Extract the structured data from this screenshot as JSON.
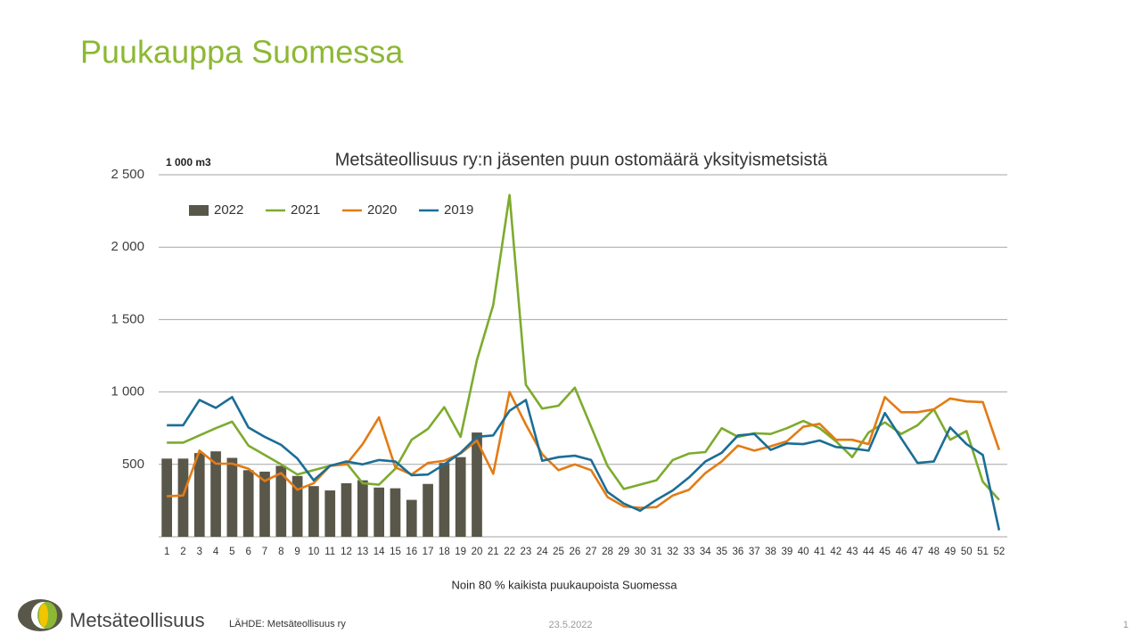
{
  "title": "Puukauppa Suomessa",
  "logo_text": "Metsäteollisuus",
  "source": "LÄHDE:  Metsäteollisuus ry",
  "date": "23.5.2022",
  "page_number": "1",
  "chart_data": {
    "type": "combo",
    "title": "Metsäteollisuus ry:n jäsenten puun ostomäärä yksityismetsistä",
    "unit_label": "1 000 m3",
    "x_caption": "Noin 80 % kaikista puukaupoista Suomessa",
    "categories": [
      1,
      2,
      3,
      4,
      5,
      6,
      7,
      8,
      9,
      10,
      11,
      12,
      13,
      14,
      15,
      16,
      17,
      18,
      19,
      20,
      21,
      22,
      23,
      24,
      25,
      26,
      27,
      28,
      29,
      30,
      31,
      32,
      33,
      34,
      35,
      36,
      37,
      38,
      39,
      40,
      41,
      42,
      43,
      44,
      45,
      46,
      47,
      48,
      49,
      50,
      51,
      52
    ],
    "ylim": [
      0,
      2500
    ],
    "yticks": [
      500,
      {
        "value": 1000,
        "label": "1 000"
      },
      {
        "value": 1500,
        "label": "1 500"
      },
      {
        "value": 2000,
        "label": "2 000"
      },
      {
        "value": 2500,
        "label": "2 500"
      }
    ],
    "grid": true,
    "legend": "top-left",
    "series": [
      {
        "name": "2022",
        "type": "bar",
        "color": "#595749",
        "values": [
          540,
          540,
          578,
          590,
          545,
          460,
          450,
          490,
          420,
          350,
          320,
          370,
          390,
          340,
          335,
          255,
          365,
          510,
          550,
          720,
          null,
          null,
          null,
          null,
          null,
          null,
          null,
          null,
          null,
          null,
          null,
          null,
          null,
          null,
          null,
          null,
          null,
          null,
          null,
          null,
          null,
          null,
          null,
          null,
          null,
          null,
          null,
          null,
          null,
          null,
          null,
          null
        ]
      },
      {
        "name": "2021",
        "type": "line",
        "color": "#7dab2e",
        "values": [
          650,
          650,
          700,
          750,
          795,
          630,
          565,
          500,
          430,
          460,
          490,
          510,
          370,
          360,
          470,
          670,
          745,
          895,
          690,
          1220,
          1600,
          2360,
          1050,
          885,
          905,
          1030,
          760,
          490,
          330,
          360,
          390,
          530,
          575,
          585,
          750,
          690,
          715,
          710,
          750,
          800,
          750,
          660,
          550,
          720,
          790,
          710,
          770,
          880,
          670,
          730,
          380,
          255
        ]
      },
      {
        "name": "2020",
        "type": "line",
        "color": "#e37b14",
        "values": [
          280,
          285,
          595,
          505,
          505,
          470,
          385,
          440,
          325,
          370,
          490,
          500,
          640,
          825,
          480,
          430,
          510,
          525,
          575,
          665,
          435,
          1000,
          775,
          570,
          460,
          500,
          460,
          275,
          210,
          200,
          205,
          285,
          325,
          440,
          520,
          630,
          595,
          625,
          660,
          760,
          780,
          670,
          670,
          640,
          965,
          860,
          860,
          880,
          955,
          935,
          930,
          600
        ]
      },
      {
        "name": "2019",
        "type": "line",
        "color": "#1b6e96",
        "values": [
          770,
          770,
          945,
          890,
          965,
          755,
          690,
          635,
          540,
          390,
          490,
          520,
          500,
          530,
          520,
          425,
          430,
          500,
          580,
          690,
          700,
          870,
          945,
          525,
          550,
          560,
          530,
          310,
          230,
          180,
          255,
          320,
          410,
          520,
          580,
          700,
          710,
          600,
          645,
          640,
          665,
          620,
          610,
          595,
          855,
          680,
          510,
          520,
          755,
          640,
          565,
          45
        ]
      }
    ]
  }
}
